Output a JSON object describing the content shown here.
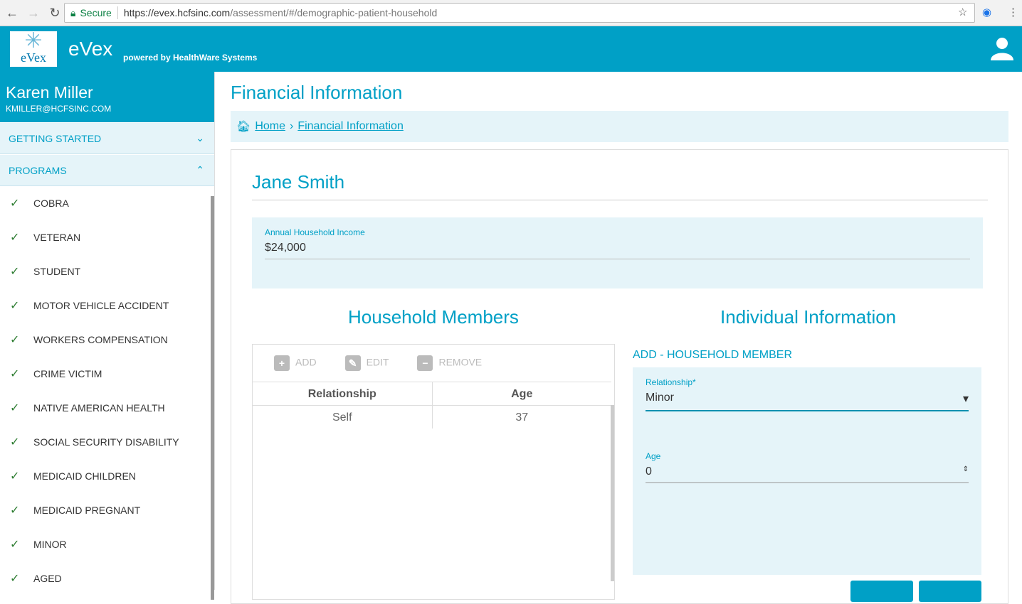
{
  "browser": {
    "secure": "Secure",
    "url_host": "https://evex.hcfsinc.com",
    "url_path": "/assessment/#/demographic-patient-household"
  },
  "header": {
    "logo_text": "eVex",
    "brand": "eVex",
    "powered": "powered by HealthWare Systems"
  },
  "sidebar": {
    "user_name": "Karen Miller",
    "user_email": "KMILLER@HCFSINC.COM",
    "sections": [
      {
        "label": "GETTING STARTED",
        "expanded": false
      },
      {
        "label": "PROGRAMS",
        "expanded": true
      }
    ],
    "programs": [
      "COBRA",
      "VETERAN",
      "STUDENT",
      "MOTOR VEHICLE ACCIDENT",
      "WORKERS COMPENSATION",
      "CRIME VICTIM",
      "NATIVE AMERICAN HEALTH",
      "SOCIAL SECURITY DISABILITY",
      "MEDICAID CHILDREN",
      "MEDICAID PREGNANT",
      "MINOR",
      "AGED"
    ]
  },
  "main": {
    "title": "Financial Information",
    "breadcrumb": [
      "Home",
      "Financial Information"
    ],
    "patient_name": "Jane Smith",
    "income": {
      "label": "Annual Household Income",
      "value": "$24,000"
    },
    "household": {
      "title": "Household Members",
      "toolbar": [
        "ADD",
        "EDIT",
        "REMOVE"
      ],
      "columns": [
        "Relationship",
        "Age"
      ],
      "rows": [
        [
          "Self",
          "37"
        ]
      ]
    },
    "individual": {
      "title": "Individual Information",
      "subtitle": "ADD - HOUSEHOLD MEMBER",
      "relationship_label": "Relationship*",
      "relationship_value": "Minor",
      "age_label": "Age",
      "age_value": "0"
    }
  },
  "colors": {
    "primary": "#00a0c6",
    "panel": "#e5f4f9",
    "check": "#2e7d32"
  }
}
